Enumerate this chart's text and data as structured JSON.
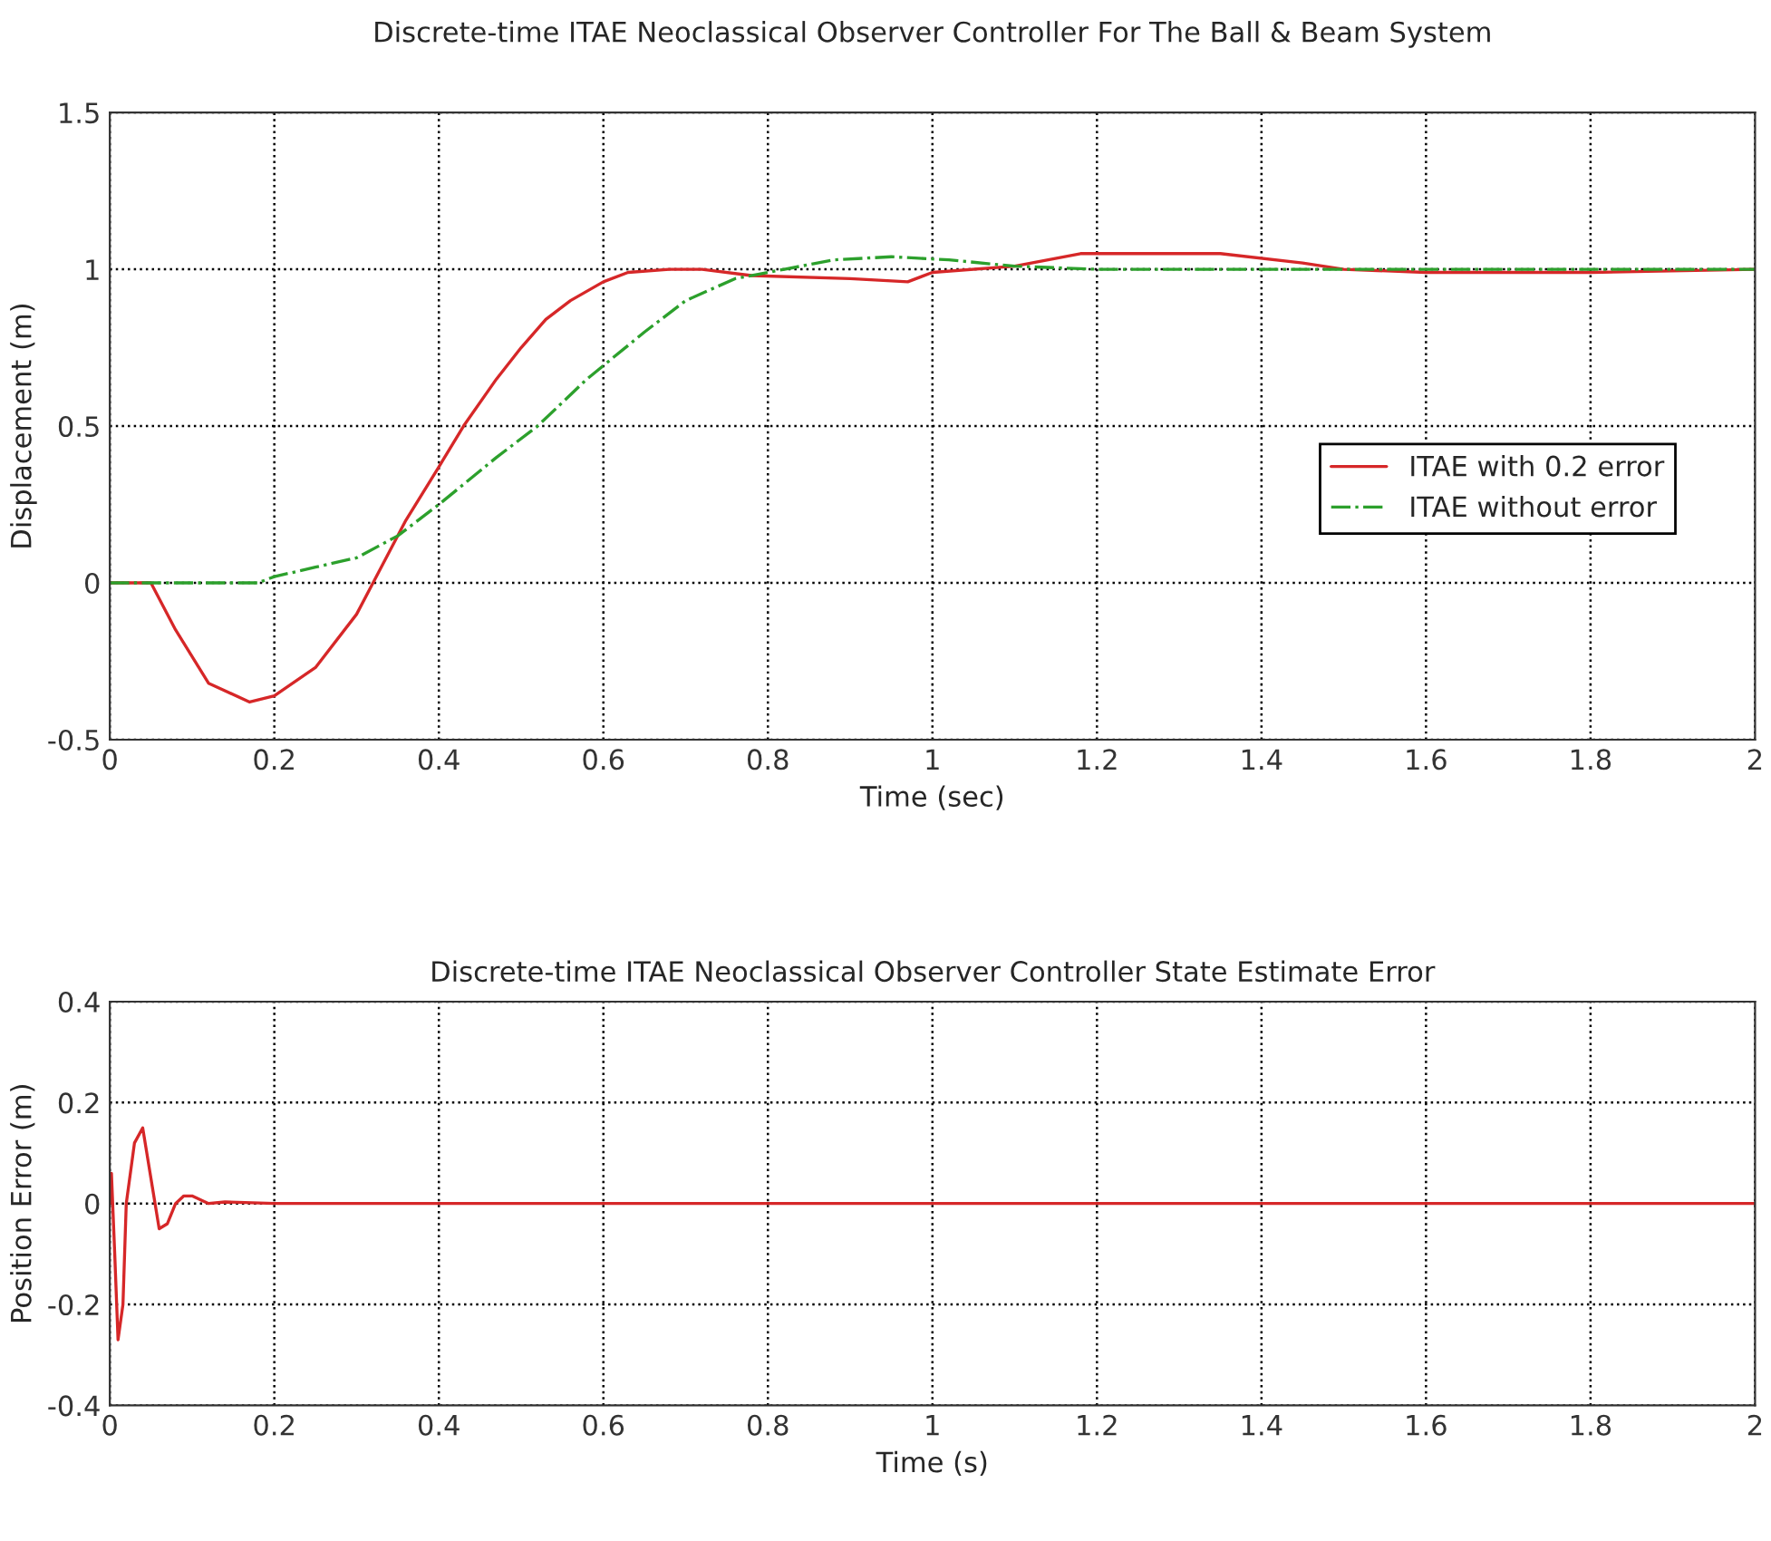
{
  "chart_data": [
    {
      "type": "line",
      "title": "Discrete-time ITAE Neoclassical Observer Controller For The Ball & Beam System",
      "xlabel": "Time (sec)",
      "ylabel": "Displacement (m)",
      "xlim": [
        0,
        2
      ],
      "ylim": [
        -0.5,
        1.5
      ],
      "xticks": [
        0,
        0.2,
        0.4,
        0.6,
        0.8,
        1,
        1.2,
        1.4,
        1.6,
        1.8,
        2
      ],
      "yticks": [
        -0.5,
        0,
        0.5,
        1,
        1.5
      ],
      "grid": true,
      "legend": "center right",
      "series": [
        {
          "name": "ITAE with 0.2 error",
          "color": "#d62728",
          "line_style": "solid",
          "x": [
            0,
            0.05,
            0.08,
            0.12,
            0.17,
            0.2,
            0.25,
            0.3,
            0.32,
            0.36,
            0.4,
            0.43,
            0.47,
            0.5,
            0.53,
            0.56,
            0.6,
            0.63,
            0.68,
            0.72,
            0.78,
            0.9,
            0.97,
            1.0,
            1.1,
            1.18,
            1.35,
            1.45,
            1.5,
            1.6,
            1.8,
            2
          ],
          "values": [
            0,
            0,
            -0.15,
            -0.32,
            -0.38,
            -0.36,
            -0.27,
            -0.1,
            0,
            0.2,
            0.37,
            0.5,
            0.65,
            0.75,
            0.84,
            0.9,
            0.96,
            0.99,
            1.0,
            1.0,
            0.98,
            0.97,
            0.96,
            0.99,
            1.01,
            1.05,
            1.05,
            1.02,
            1.0,
            0.99,
            0.99,
            1.0
          ]
        },
        {
          "name": "ITAE without error",
          "color": "#2ca02c",
          "line_style": "dashdot",
          "x": [
            0,
            0.18,
            0.2,
            0.25,
            0.3,
            0.35,
            0.4,
            0.47,
            0.52,
            0.58,
            0.65,
            0.7,
            0.76,
            0.82,
            0.88,
            0.95,
            1.02,
            1.1,
            1.2,
            2
          ],
          "values": [
            0,
            0,
            0.02,
            0.05,
            0.08,
            0.15,
            0.25,
            0.4,
            0.5,
            0.65,
            0.8,
            0.9,
            0.97,
            1.0,
            1.03,
            1.04,
            1.03,
            1.01,
            1.0,
            1.0
          ]
        }
      ]
    },
    {
      "type": "line",
      "title": "Discrete-time ITAE Neoclassical Observer Controller State Estimate Error",
      "xlabel": "Time (s)",
      "ylabel": "Position Error (m)",
      "xlim": [
        0,
        2
      ],
      "ylim": [
        -0.4,
        0.4
      ],
      "xticks": [
        0,
        0.2,
        0.4,
        0.6,
        0.8,
        1,
        1.2,
        1.4,
        1.6,
        1.8,
        2
      ],
      "yticks": [
        -0.4,
        -0.2,
        0,
        0.2,
        0.4
      ],
      "grid": true,
      "series": [
        {
          "color": "#d62728",
          "line_style": "solid",
          "x": [
            0,
            0.002,
            0.006,
            0.01,
            0.016,
            0.02,
            0.03,
            0.04,
            0.05,
            0.06,
            0.07,
            0.08,
            0.09,
            0.1,
            0.12,
            0.14,
            0.2,
            0.93,
            2
          ],
          "values": [
            0,
            0.06,
            -0.1,
            -0.27,
            -0.2,
            0,
            0.12,
            0.15,
            0.05,
            -0.05,
            -0.04,
            0,
            0.015,
            0.015,
            0,
            0.003,
            0,
            0,
            0
          ]
        }
      ]
    }
  ]
}
